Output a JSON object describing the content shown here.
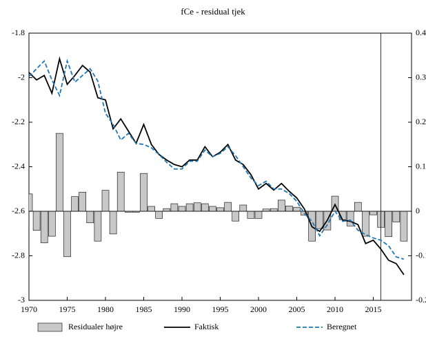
{
  "chart_data": {
    "type": "combo",
    "title": "fCe - residual tjek",
    "x": [
      1970,
      1971,
      1972,
      1973,
      1974,
      1975,
      1976,
      1977,
      1978,
      1979,
      1980,
      1981,
      1982,
      1983,
      1984,
      1985,
      1986,
      1987,
      1988,
      1989,
      1990,
      1991,
      1992,
      1993,
      1994,
      1995,
      1996,
      1997,
      1998,
      1999,
      2000,
      2001,
      2002,
      2003,
      2004,
      2005,
      2006,
      2007,
      2008,
      2009,
      2010,
      2011,
      2012,
      2013,
      2014,
      2015,
      2016,
      2017,
      2018,
      2019
    ],
    "series": [
      {
        "name": "Residualer højre",
        "type": "bar",
        "axis": "y2",
        "color": "#c8c8c8",
        "values": [
          0.039,
          -0.043,
          -0.071,
          -0.056,
          0.175,
          -0.102,
          0.033,
          0.043,
          -0.026,
          -0.067,
          0.047,
          -0.051,
          0.088,
          -0.002,
          -0.002,
          0.085,
          0.011,
          -0.016,
          0.006,
          0.017,
          0.011,
          0.017,
          0.019,
          0.017,
          0.011,
          0.008,
          0.02,
          -0.022,
          0.014,
          -0.016,
          -0.016,
          0.005,
          0.006,
          0.025,
          0.012,
          0.009,
          -0.009,
          -0.067,
          -0.039,
          -0.042,
          0.034,
          -0.019,
          -0.033,
          0.02,
          -0.056,
          -0.008,
          -0.036,
          -0.057,
          -0.024,
          -0.067
        ]
      },
      {
        "name": "Faktisk",
        "type": "line",
        "color": "#000000",
        "values": [
          -1.977,
          -2.01,
          -1.99,
          -2.07,
          -1.915,
          -2.03,
          -1.99,
          -1.945,
          -1.975,
          -2.09,
          -2.1,
          -2.23,
          -2.185,
          -2.24,
          -2.295,
          -2.21,
          -2.3,
          -2.345,
          -2.37,
          -2.39,
          -2.4,
          -2.37,
          -2.37,
          -2.31,
          -2.355,
          -2.335,
          -2.3,
          -2.37,
          -2.39,
          -2.435,
          -2.5,
          -2.475,
          -2.505,
          -2.475,
          -2.51,
          -2.54,
          -2.59,
          -2.67,
          -2.69,
          -2.64,
          -2.57,
          -2.64,
          -2.645,
          -2.66,
          -2.745,
          -2.73,
          -2.77,
          -2.82,
          -2.835,
          -2.885
        ]
      },
      {
        "name": "Beregnet",
        "type": "line",
        "dashed": true,
        "color": "#1f77b4",
        "values": [
          -1.995,
          -1.96,
          -1.925,
          -2.01,
          -2.08,
          -1.925,
          -2.02,
          -1.99,
          -1.96,
          -2.015,
          -2.16,
          -2.21,
          -2.28,
          -2.25,
          -2.295,
          -2.3,
          -2.315,
          -2.345,
          -2.38,
          -2.41,
          -2.41,
          -2.375,
          -2.375,
          -2.325,
          -2.355,
          -2.34,
          -2.31,
          -2.35,
          -2.4,
          -2.45,
          -2.485,
          -2.465,
          -2.5,
          -2.5,
          -2.52,
          -2.555,
          -2.61,
          -2.645,
          -2.71,
          -2.66,
          -2.6,
          -2.645,
          -2.64,
          -2.685,
          -2.705,
          -2.72,
          -2.73,
          -2.755,
          -2.805,
          -2.815
        ]
      }
    ],
    "xlim": [
      1970,
      2020
    ],
    "xticks": [
      1970,
      1975,
      1980,
      1985,
      1990,
      1995,
      2000,
      2005,
      2010,
      2015
    ],
    "ylim": [
      -3,
      -1.8
    ],
    "yticks": [
      -1.8,
      -2,
      -2.2,
      -2.4,
      -2.6,
      -2.8,
      -3
    ],
    "y2lim": [
      -0.2,
      0.4
    ],
    "y2ticks": [
      0.4,
      0.3,
      0.2,
      0.1,
      0,
      -0.1,
      -0.2
    ],
    "vline": 2016,
    "grid": false,
    "legend": "bottom"
  }
}
